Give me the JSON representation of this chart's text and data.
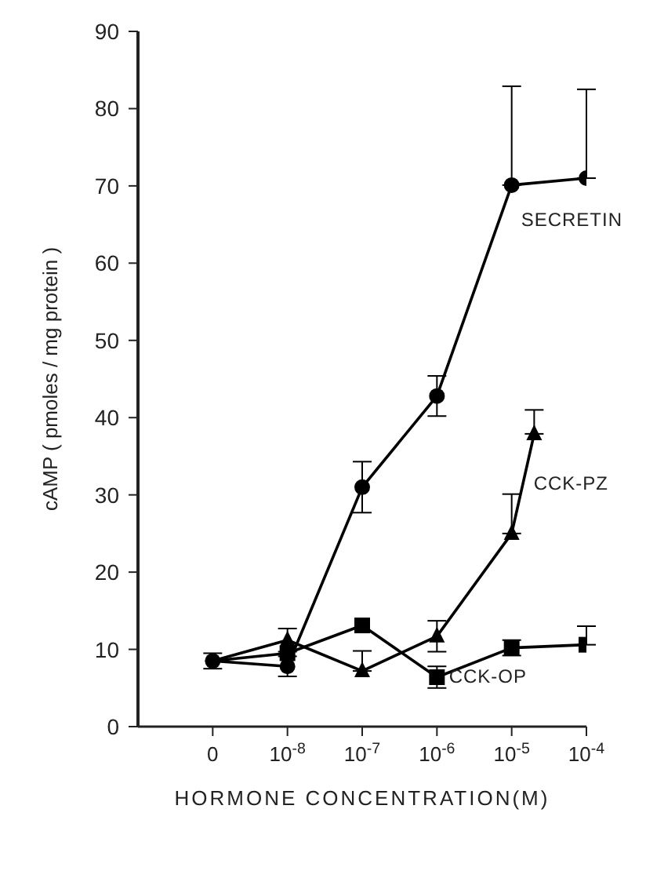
{
  "chart_data": {
    "type": "line",
    "xlabel": "HORMONE CONCENTRATION(M)",
    "ylabel": "cAMP ( pmoles / mg protein )",
    "log": "x",
    "xlim": [
      1e-10,
      0.0001
    ],
    "xticks": [
      {
        "value": 1e-09,
        "label": "0"
      },
      {
        "value": 1e-08,
        "label": "10$^{-8}$"
      },
      {
        "value": 1e-07,
        "label": "10$^{-7}$"
      },
      {
        "value": 1e-06,
        "label": "10$^{-6}$"
      },
      {
        "value": 1e-05,
        "label": "10$^{-5}$"
      },
      {
        "value": 0.0001,
        "label": "10$^{-4}$"
      }
    ],
    "ylim": [
      0,
      90
    ],
    "yticks": [
      0,
      10,
      20,
      30,
      40,
      50,
      60,
      70,
      80,
      90
    ],
    "grid": false,
    "legend": false,
    "series": [
      {
        "name": "SECRETIN",
        "color": "#000000",
        "marker": "circle",
        "x": [
          1e-09,
          1e-08,
          1e-07,
          1e-06,
          1e-05,
          0.0001
        ],
        "values": [
          8.5,
          7.8,
          31,
          42.8,
          70.1,
          71
        ],
        "errors": [
          1,
          1.3,
          3.3,
          2.6,
          [
            70.1,
            82.9
          ],
          [
            71,
            82.5
          ]
        ]
      },
      {
        "name": "CCK-PZ",
        "color": "#000000",
        "marker": "triangle",
        "x": [
          1e-09,
          1e-08,
          1e-07,
          1e-06,
          1e-05,
          2e-05
        ],
        "values": [
          8.5,
          11.2,
          7.2,
          11.7,
          25,
          37.9
        ],
        "errors": [
          null,
          1.5,
          [
            7.2,
            9.8
          ],
          2,
          [
            25,
            30.1
          ],
          [
            37.9,
            41
          ]
        ]
      },
      {
        "name": "CCK-OP",
        "color": "#000000",
        "marker": "square",
        "x": [
          1e-09,
          1e-08,
          1e-07,
          1e-06,
          1e-05,
          0.0001
        ],
        "values": [
          8.5,
          9.5,
          13.1,
          6.4,
          10.2,
          10.6
        ],
        "errors": [
          null,
          null,
          null,
          1.4,
          1,
          [
            10.6,
            13
          ]
        ]
      }
    ]
  }
}
